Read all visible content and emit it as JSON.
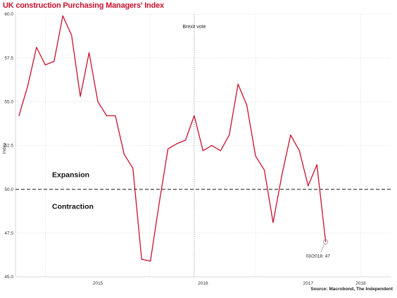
{
  "chart_data": {
    "type": "line",
    "title": "UK construction Purchasing Managers' Index",
    "source": "Source: Macrobond, The Independent",
    "ylabel": "Index",
    "xlabel": "",
    "ylim": [
      45.0,
      60.0
    ],
    "yticks": [
      "45.0",
      "47.5",
      "50.0",
      "52.5",
      "55.0",
      "57.5",
      "60.0"
    ],
    "xlim": [
      "2014-10",
      "2018-04"
    ],
    "xticks": [
      {
        "date": "2015-07",
        "label": "2015"
      },
      {
        "date": "2016-07",
        "label": "2016"
      },
      {
        "date": "2017-07",
        "label": "2017"
      },
      {
        "date": "2018-01",
        "label": "2018"
      }
    ],
    "year_gridlines": [
      "2015-01",
      "2016-01",
      "2017-01",
      "2018-01"
    ],
    "grid": true,
    "reference_line": {
      "value": 50.0,
      "above_label": "Expansion",
      "below_label": "Contraction"
    },
    "event_line": {
      "date": "2016-06",
      "label": "Brexit vote"
    },
    "series": [
      {
        "color": "#c8102e",
        "points": [
          {
            "x": "2014-10",
            "y": 54.2
          },
          {
            "x": "2014-11",
            "y": 55.9
          },
          {
            "x": "2014-12",
            "y": 58.1
          },
          {
            "x": "2015-01",
            "y": 57.1
          },
          {
            "x": "2015-02",
            "y": 57.3
          },
          {
            "x": "2015-03",
            "y": 59.9
          },
          {
            "x": "2015-04",
            "y": 58.8
          },
          {
            "x": "2015-05",
            "y": 55.3
          },
          {
            "x": "2015-06",
            "y": 57.8
          },
          {
            "x": "2015-07",
            "y": 55.0
          },
          {
            "x": "2015-08",
            "y": 54.2
          },
          {
            "x": "2015-09",
            "y": 54.2
          },
          {
            "x": "2015-10",
            "y": 52.0
          },
          {
            "x": "2015-11",
            "y": 51.2
          },
          {
            "x": "2015-12",
            "y": 46.0
          },
          {
            "x": "2016-01",
            "y": 45.9
          },
          {
            "x": "2016-02",
            "y": 49.2
          },
          {
            "x": "2016-03",
            "y": 52.3
          },
          {
            "x": "2016-04",
            "y": 52.6
          },
          {
            "x": "2016-05",
            "y": 52.8
          },
          {
            "x": "2016-06",
            "y": 54.2
          },
          {
            "x": "2016-07",
            "y": 52.2
          },
          {
            "x": "2016-08",
            "y": 52.5
          },
          {
            "x": "2016-09",
            "y": 52.2
          },
          {
            "x": "2016-10",
            "y": 53.1
          },
          {
            "x": "2016-11",
            "y": 56.0
          },
          {
            "x": "2016-12",
            "y": 54.8
          },
          {
            "x": "2017-01",
            "y": 51.9
          },
          {
            "x": "2017-02",
            "y": 51.1
          },
          {
            "x": "2017-03",
            "y": 48.1
          },
          {
            "x": "2017-04",
            "y": 50.8
          },
          {
            "x": "2017-05",
            "y": 53.1
          },
          {
            "x": "2017-06",
            "y": 52.2
          },
          {
            "x": "2017-07",
            "y": 50.2
          },
          {
            "x": "2017-08",
            "y": 51.4
          },
          {
            "x": "2017-09",
            "y": 47.0
          }
        ]
      }
    ],
    "highlight_label": "03/2018: 47"
  }
}
